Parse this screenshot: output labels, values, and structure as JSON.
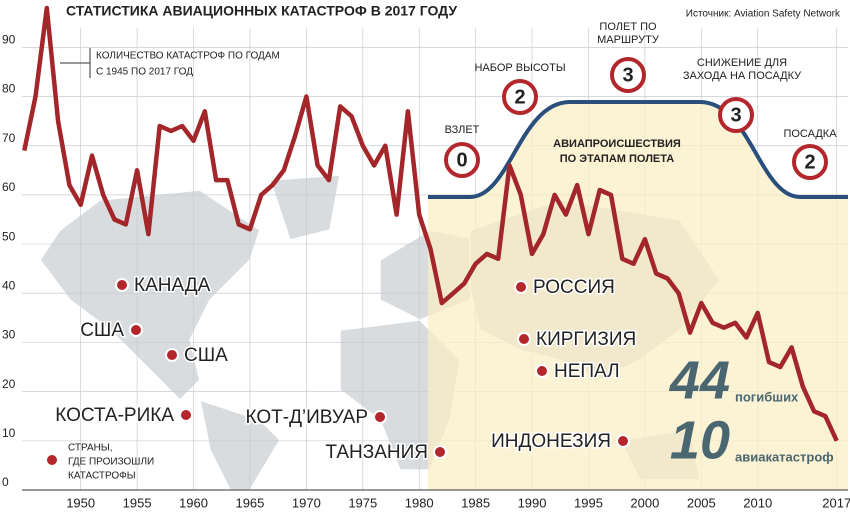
{
  "chart_data": {
    "type": "line",
    "title": "СТАТИСТИКА АВИАЦИОННЫХ КАТАСТРОФ В 2017 ГОДУ",
    "source": "Источник: Aviation Safety Network",
    "annotation": [
      "КОЛИЧЕСТВО КАТАСТРОФ ПО ГОДАМ",
      "С 1945 ПО 2017 ГОД"
    ],
    "x": [
      1945,
      1946,
      1947,
      1948,
      1949,
      1950,
      1951,
      1952,
      1953,
      1954,
      1955,
      1956,
      1957,
      1958,
      1959,
      1960,
      1961,
      1962,
      1963,
      1964,
      1965,
      1966,
      1967,
      1968,
      1969,
      1970,
      1971,
      1972,
      1973,
      1974,
      1975,
      1976,
      1977,
      1978,
      1979,
      1980,
      1981,
      1982,
      1983,
      1984,
      1985,
      1986,
      1987,
      1988,
      1989,
      1990,
      1991,
      1992,
      1993,
      1994,
      1995,
      1996,
      1997,
      1998,
      1999,
      2000,
      2001,
      2002,
      2003,
      2004,
      2005,
      2006,
      2007,
      2008,
      2009,
      2010,
      2011,
      2012,
      2013,
      2014,
      2015,
      2016,
      2017
    ],
    "series": [
      {
        "color": "#a3262a",
        "values": [
          69,
          80,
          98,
          75,
          62,
          58,
          68,
          60,
          55,
          54,
          65,
          52,
          74,
          73,
          74,
          71,
          77,
          63,
          63,
          54,
          53,
          60,
          62,
          65,
          72,
          80,
          66,
          63,
          78,
          76,
          70,
          66,
          70,
          56,
          77,
          56,
          49,
          38,
          40,
          42,
          46,
          48,
          47,
          66,
          60,
          48,
          52,
          60,
          56,
          62,
          52,
          61,
          60,
          47,
          46,
          51,
          44,
          43,
          40,
          32,
          38,
          34,
          33,
          34,
          31,
          36,
          26,
          25,
          29,
          21,
          16,
          15,
          10
        ]
      }
    ],
    "xlim": [
      1944.8,
      2018
    ],
    "ylim": [
      0,
      98
    ],
    "xticks": [
      1950,
      1955,
      1960,
      1965,
      1970,
      1975,
      1980,
      1985,
      1990,
      1995,
      2000,
      2005,
      2010,
      2017
    ],
    "yticks": [
      0,
      10,
      20,
      30,
      40,
      50,
      60,
      70,
      80,
      90
    ],
    "grid": true,
    "phases": {
      "title": [
        "АВИАПРОИСШЕСТВИЯ",
        "ПО ЭТАПАМ ПОЛЕТА"
      ],
      "items": [
        {
          "label": [
            "ВЗЛЕТ"
          ],
          "count": 0
        },
        {
          "label": [
            "НАБОР ВЫСОТЫ"
          ],
          "count": 2
        },
        {
          "label": [
            "ПОЛЕТ ПО",
            "МАРШРУТУ"
          ],
          "count": 3
        },
        {
          "label": [
            "СНИЖЕНИЕ ДЛЯ",
            "ЗАХОДА НА ПОСАДКУ"
          ],
          "count": 3
        },
        {
          "label": [
            "ПОСАДКА"
          ],
          "count": 2
        }
      ]
    },
    "countries": [
      "КАНАДА",
      "США",
      "США",
      "КОСТА-РИКА",
      "КОТ-Д’ИВУАР",
      "ТАНЗАНИЯ",
      "РОССИЯ",
      "КИРГИЗИЯ",
      "НЕПАЛ",
      "ИНДОНЕЗИЯ"
    ],
    "countries_legend": [
      "СТРАНЫ,",
      "ГДЕ ПРОИЗОШЛИ",
      "КАТАСТРОФЫ"
    ],
    "totals": {
      "deaths": 44,
      "deaths_label": "погибших",
      "crashes": 10,
      "crashes_label": "авиакатастроф"
    }
  }
}
